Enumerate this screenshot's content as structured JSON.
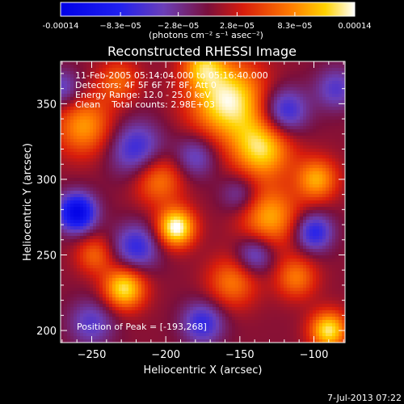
{
  "chart_data": {
    "type": "heatmap",
    "title": "Reconstructed RHESSI Image",
    "xlabel": "Heliocentric X (arcsec)",
    "ylabel": "Heliocentric Y (arcsec)",
    "xlim": [
      -271,
      -79
    ],
    "ylim": [
      192,
      378
    ],
    "xticks": [
      -250,
      -200,
      -150,
      -100
    ],
    "yticks": [
      200,
      250,
      300,
      350
    ],
    "colorbar": {
      "range": [
        -0.00014,
        0.00014
      ],
      "tick_values": [
        -0.00014,
        -8.3e-05,
        -2.8e-05,
        2.8e-05,
        8.3e-05,
        0.00014
      ],
      "tick_labels": [
        "-0.00014",
        "−8.3e−05",
        "−2.8e−05",
        "2.8e−05",
        "8.3e−05",
        "0.00014"
      ],
      "unit_label": "(photons cm⁻² s⁻¹ asec⁻²)"
    },
    "annotations": [
      "11-Feb-2005 05:14:04.000 to 05:16:40.000",
      "Detectors: 4F 5F 6F 7F 8F, Att 0",
      "Energy Range: 12.0 - 25.0 keV",
      "Clean    Total counts: 2.98E+03"
    ],
    "peak_label": "Position of Peak = [-193,268]",
    "peak": [
      -193,
      268
    ],
    "sources": [
      {
        "x": -158,
        "y": 352,
        "sigma": 18,
        "amp": 0.00013
      },
      {
        "x": -135,
        "y": 320,
        "sigma": 14,
        "amp": 0.00011
      },
      {
        "x": -193,
        "y": 268,
        "sigma": 9,
        "amp": 0.00014
      },
      {
        "x": -228,
        "y": 228,
        "sigma": 10,
        "amp": 0.00012
      },
      {
        "x": -205,
        "y": 300,
        "sigma": 12,
        "amp": 7.5e-05
      },
      {
        "x": -255,
        "y": 335,
        "sigma": 14,
        "amp": 8.5e-05
      },
      {
        "x": -130,
        "y": 275,
        "sigma": 14,
        "amp": 9e-05
      },
      {
        "x": -98,
        "y": 300,
        "sigma": 10,
        "amp": 9e-05
      },
      {
        "x": -90,
        "y": 200,
        "sigma": 9,
        "amp": 0.00012
      },
      {
        "x": -155,
        "y": 232,
        "sigma": 12,
        "amp": 7e-05
      },
      {
        "x": -175,
        "y": 375,
        "sigma": 10,
        "amp": 8e-05
      },
      {
        "x": -232,
        "y": 365,
        "sigma": 10,
        "amp": 6e-05
      },
      {
        "x": -248,
        "y": 250,
        "sigma": 9,
        "amp": 6e-05
      },
      {
        "x": -112,
        "y": 235,
        "sigma": 10,
        "amp": 7e-05
      },
      {
        "x": -260,
        "y": 278,
        "sigma": 9,
        "amp": -0.00014
      },
      {
        "x": -100,
        "y": 265,
        "sigma": 9,
        "amp": -9e-05
      },
      {
        "x": -220,
        "y": 255,
        "sigma": 11,
        "amp": -8e-05
      },
      {
        "x": -220,
        "y": 320,
        "sigma": 13,
        "amp": -8e-05
      },
      {
        "x": -175,
        "y": 205,
        "sigma": 10,
        "amp": -8e-05
      },
      {
        "x": -120,
        "y": 345,
        "sigma": 11,
        "amp": -9e-05
      },
      {
        "x": -180,
        "y": 315,
        "sigma": 10,
        "amp": -6e-05
      },
      {
        "x": -140,
        "y": 250,
        "sigma": 9,
        "amp": -7e-05
      },
      {
        "x": -150,
        "y": 290,
        "sigma": 9,
        "amp": -5e-05
      },
      {
        "x": -85,
        "y": 360,
        "sigma": 10,
        "amp": -6e-05
      },
      {
        "x": -250,
        "y": 205,
        "sigma": 11,
        "amp": -6e-05
      },
      {
        "x": -270,
        "y": 360,
        "sigma": 9,
        "amp": -6e-05
      }
    ]
  },
  "footer": {
    "timestamp": "7-Jul-2013 07:22"
  }
}
